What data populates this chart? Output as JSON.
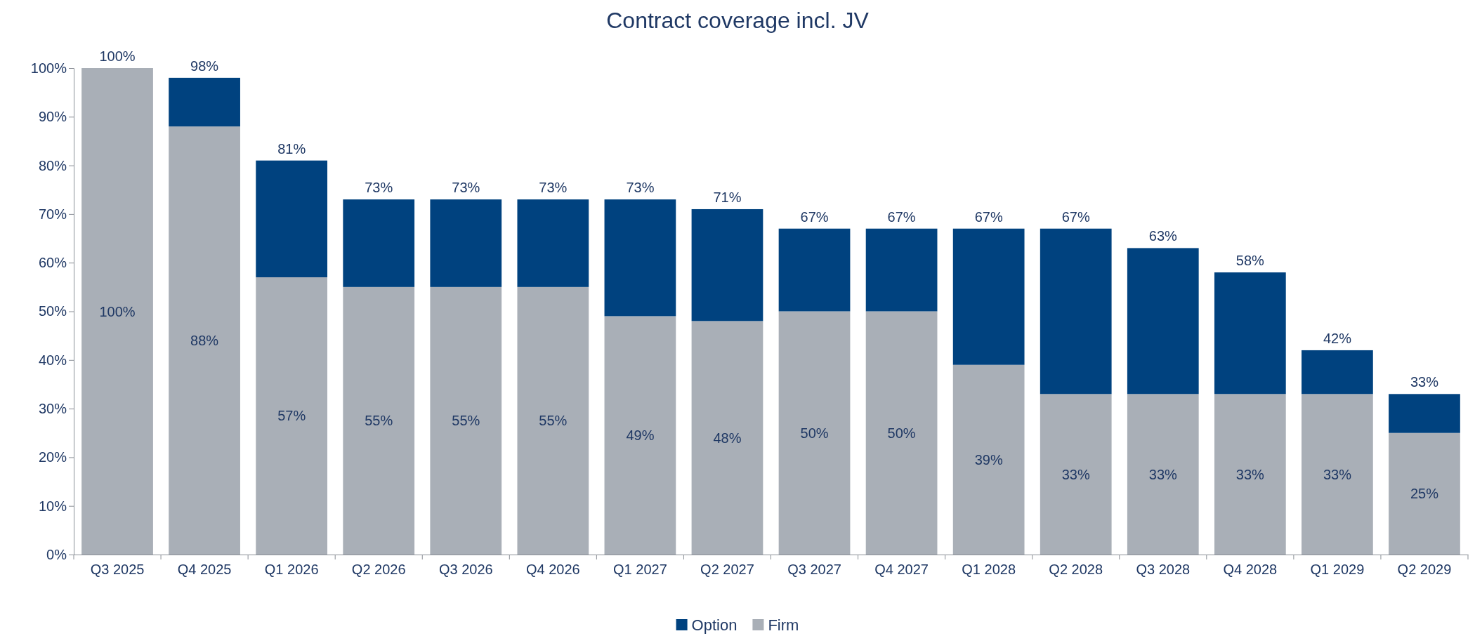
{
  "chart_data": {
    "type": "bar",
    "title": "Contract coverage incl. JV",
    "stacked": true,
    "categories": [
      "Q3 2025",
      "Q4 2025",
      "Q1 2026",
      "Q2 2026",
      "Q3 2026",
      "Q4 2026",
      "Q1 2027",
      "Q2 2027",
      "Q3 2027",
      "Q4 2027",
      "Q1 2028",
      "Q2 2028",
      "Q3 2028",
      "Q4 2028",
      "Q1 2029",
      "Q2 2029"
    ],
    "series": [
      {
        "name": "Firm",
        "color": "#a9afb7",
        "values": [
          100,
          88,
          57,
          55,
          55,
          55,
          49,
          48,
          50,
          50,
          39,
          33,
          33,
          33,
          33,
          25
        ],
        "value_labels": [
          "100%",
          "88%",
          "57%",
          "55%",
          "55%",
          "55%",
          "49%",
          "48%",
          "50%",
          "50%",
          "39%",
          "33%",
          "33%",
          "33%",
          "33%",
          "25%"
        ]
      },
      {
        "name": "Option",
        "color": "#00427f",
        "values": [
          0,
          10,
          24,
          18,
          18,
          18,
          24,
          23,
          17,
          17,
          28,
          34,
          30,
          25,
          9,
          8
        ]
      }
    ],
    "totals": [
      "100%",
      "98%",
      "81%",
      "73%",
      "73%",
      "73%",
      "73%",
      "71%",
      "67%",
      "67%",
      "67%",
      "67%",
      "63%",
      "58%",
      "42%",
      "33%"
    ],
    "ylim": [
      0,
      100
    ],
    "yticks": [
      {
        "value": 0,
        "label": "0%"
      },
      {
        "value": 10,
        "label": "10%"
      },
      {
        "value": 20,
        "label": "20%"
      },
      {
        "value": 30,
        "label": "30%"
      },
      {
        "value": 40,
        "label": "40%"
      },
      {
        "value": 50,
        "label": "50%"
      },
      {
        "value": 60,
        "label": "60%"
      },
      {
        "value": 70,
        "label": "70%"
      },
      {
        "value": 80,
        "label": "80%"
      },
      {
        "value": 90,
        "label": "90%"
      },
      {
        "value": 100,
        "label": "100%"
      }
    ],
    "grid": false,
    "legend": "bottom"
  }
}
